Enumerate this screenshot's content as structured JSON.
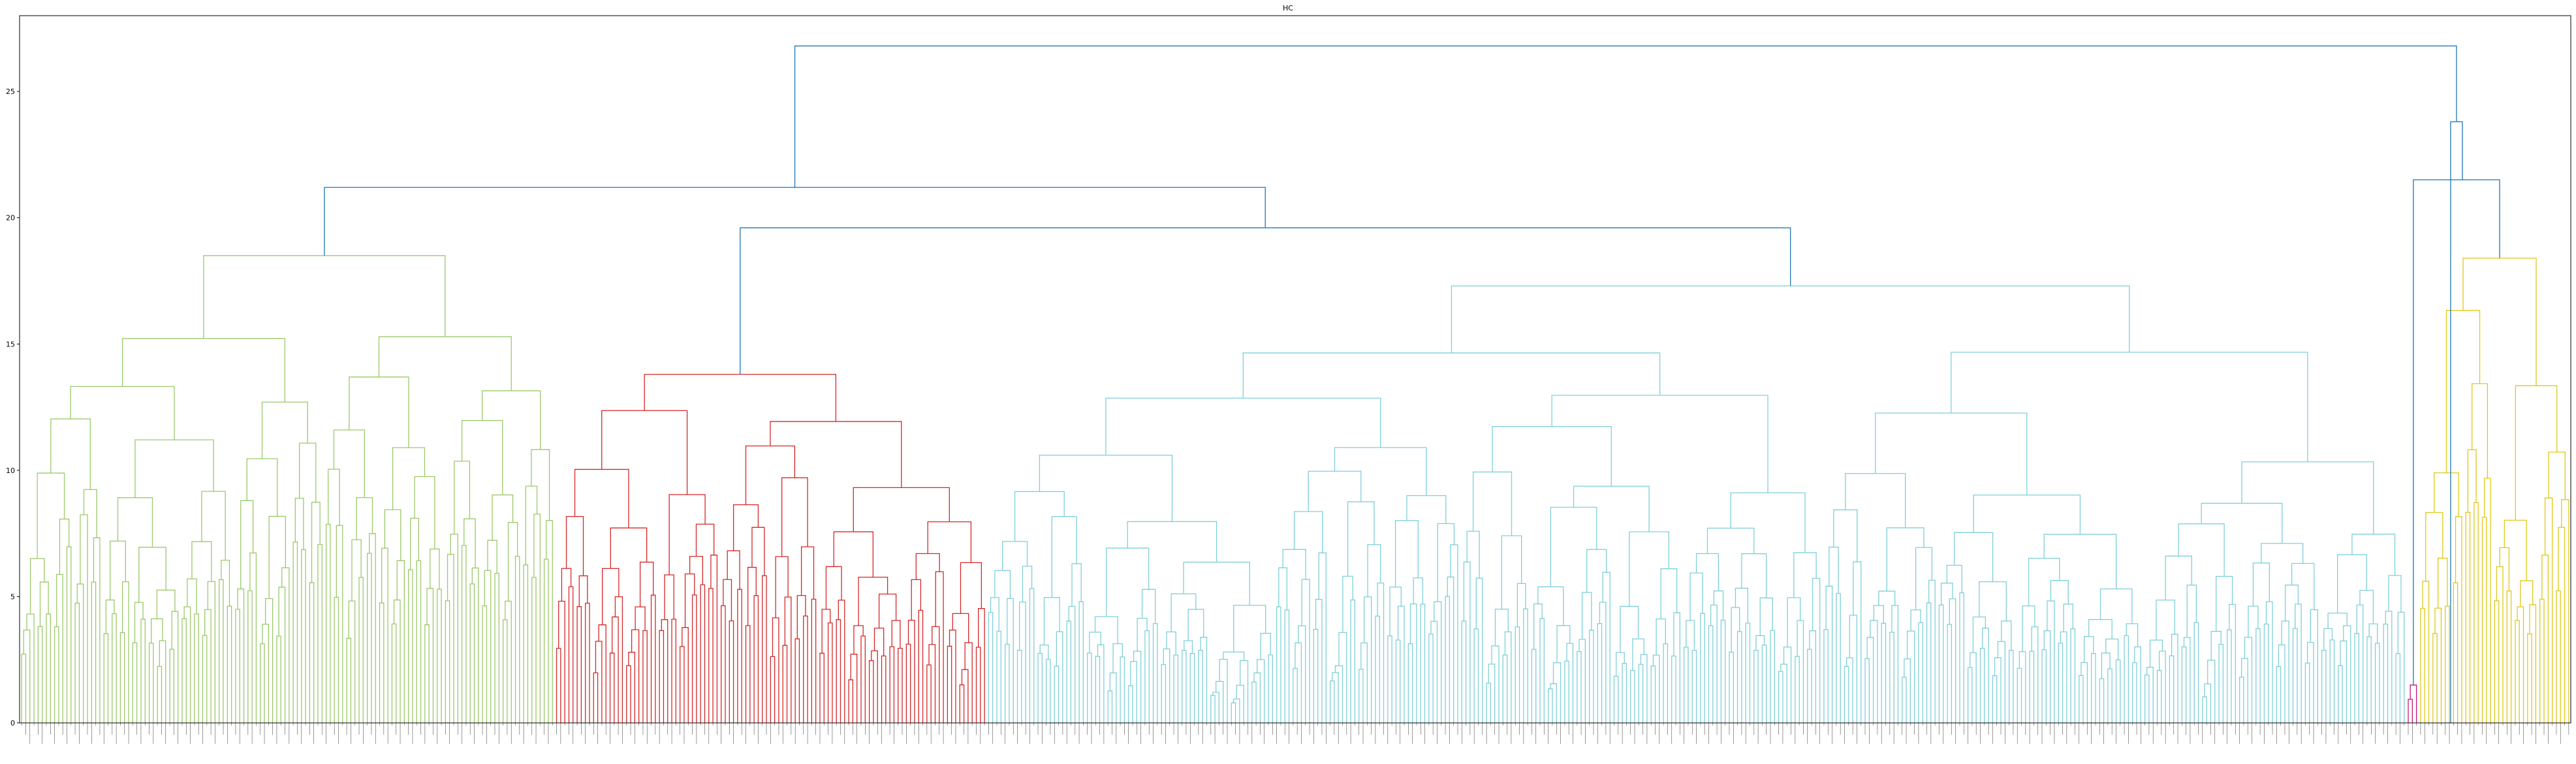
{
  "chart_data": {
    "type": "dendrogram",
    "title": "HC",
    "xlabel": "",
    "ylabel": "",
    "ylim": [
      0,
      28
    ],
    "yticks": [
      0,
      5,
      10,
      15,
      20,
      25
    ],
    "grid": false,
    "legend": "none",
    "leaf_count": 620,
    "colors": {
      "axis": "#000000",
      "link_above_threshold": "#1f77b4",
      "green": "#9cc96b",
      "red": "#d62728",
      "cyan": "#7fd0d8",
      "magenta": "#c5157a",
      "yellow": "#e0c81a"
    },
    "clusters": [
      {
        "color_key": "green",
        "leaves": 130
      },
      {
        "color_key": "red",
        "leaves": 105
      },
      {
        "color_key": "cyan",
        "leaves": 345
      },
      {
        "color_key": "magenta",
        "leaves": 3
      },
      {
        "color_key": "yellow",
        "leaves": 37
      }
    ],
    "top_links": [
      {
        "cluster_span": [
          0,
          0
        ],
        "height": 18.5,
        "split_height": 17.5
      },
      {
        "cluster_span": [
          1,
          1
        ],
        "height": 13.8,
        "split_height": 13.3
      },
      {
        "cluster_span": [
          2,
          2
        ],
        "height": 17.3,
        "split_height": 16.5
      },
      {
        "cluster_span": [
          3,
          3
        ],
        "height": 1.5,
        "split_height": 1.0
      },
      {
        "cluster_span": [
          4,
          4
        ],
        "height": 18.4,
        "split_height": 17.6
      }
    ],
    "merges": [
      {
        "left": "C2",
        "right": "C3",
        "height": 19.6
      },
      {
        "left": "C1",
        "right": "C2|C3",
        "height": 21.2
      },
      {
        "left": "C4",
        "right": "C5",
        "height": 21.5
      },
      {
        "left": "C4|C5",
        "right": "C4|C5",
        "height": 23.8
      },
      {
        "left": "C1|C2|C3",
        "right": "C4|C5",
        "height": 26.8
      }
    ]
  }
}
